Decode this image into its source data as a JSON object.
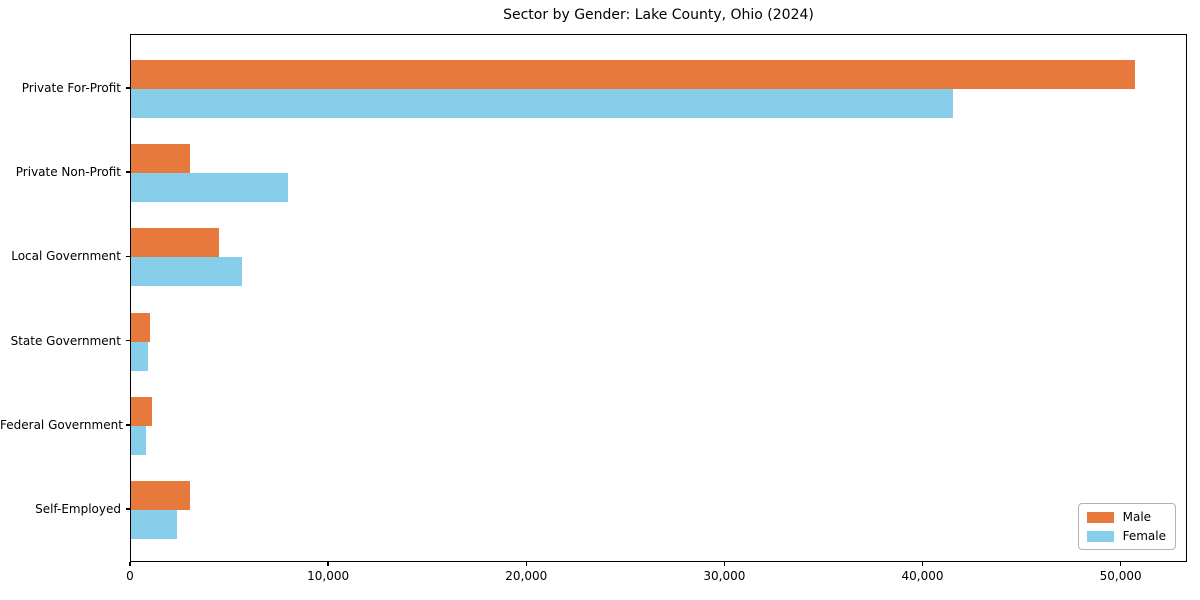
{
  "chart_data": {
    "type": "bar",
    "orientation": "horizontal",
    "title": "Sector by Gender: Lake County, Ohio (2024)",
    "categories": [
      "Private For-Profit",
      "Private Non-Profit",
      "Local Government",
      "State Government",
      "Federal Government",
      "Self-Employed"
    ],
    "series": [
      {
        "name": "Male",
        "color": "#e8793d",
        "values": [
          50700,
          3000,
          4450,
          950,
          1050,
          3000
        ]
      },
      {
        "name": "Female",
        "color": "#87ceeb",
        "values": [
          41500,
          7900,
          5600,
          850,
          750,
          2300
        ]
      }
    ],
    "xlabel": "",
    "ylabel": "",
    "xlim": [
      0,
      53350
    ],
    "x_ticks": [
      0,
      10000,
      20000,
      30000,
      40000,
      50000
    ],
    "x_tick_labels": [
      "0",
      "10,000",
      "20,000",
      "30,000",
      "40,000",
      "50,000"
    ],
    "legend": {
      "position": "lower right",
      "entries": [
        "Male",
        "Female"
      ]
    },
    "grid": false,
    "background_color": "#ffffff",
    "axis_color": "#000000"
  }
}
